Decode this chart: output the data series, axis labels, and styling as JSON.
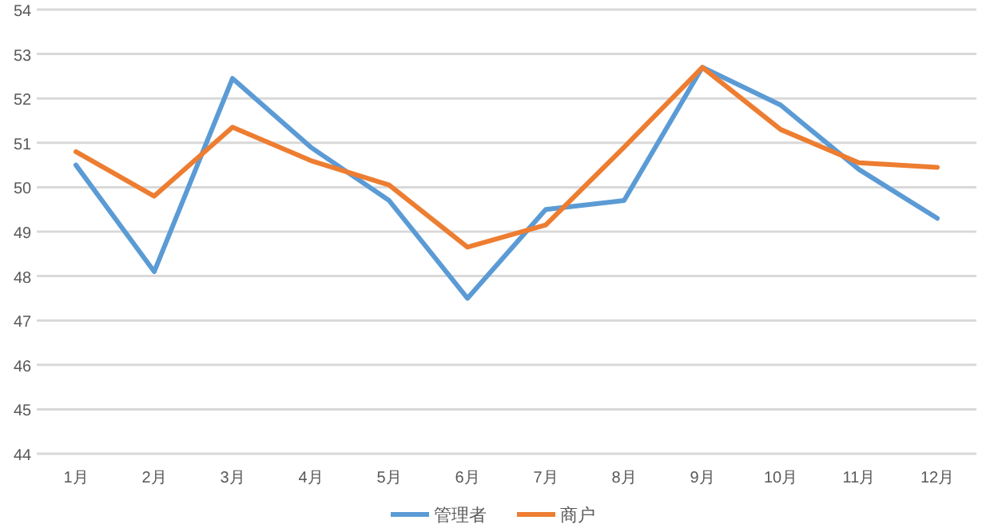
{
  "chart_data": {
    "type": "line",
    "categories": [
      "1月",
      "2月",
      "3月",
      "4月",
      "5月",
      "6月",
      "7月",
      "8月",
      "9月",
      "10月",
      "11月",
      "12月"
    ],
    "series": [
      {
        "name": "管理者",
        "color": "#5b9bd5",
        "values": [
          50.5,
          48.1,
          52.45,
          50.9,
          49.7,
          47.5,
          49.5,
          49.7,
          52.7,
          51.85,
          50.4,
          49.3
        ]
      },
      {
        "name": "商户",
        "color": "#ed7d31",
        "values": [
          50.8,
          49.8,
          51.35,
          50.6,
          50.05,
          48.65,
          49.15,
          50.9,
          52.7,
          51.3,
          50.55,
          50.45
        ]
      }
    ],
    "ylim": [
      44,
      54
    ],
    "yticks": [
      44,
      45,
      46,
      47,
      48,
      49,
      50,
      51,
      52,
      53,
      54
    ],
    "grid": "y",
    "legend": "bottom",
    "marker": "none",
    "line_style": "solid"
  }
}
